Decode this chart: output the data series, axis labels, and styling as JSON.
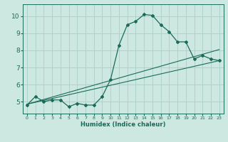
{
  "xlabel": "Humidex (Indice chaleur)",
  "ylabel": "",
  "bg_color": "#cce8e0",
  "grid_color": "#aacfc8",
  "line_color": "#1a6b5a",
  "xlim": [
    -0.5,
    23.5
  ],
  "ylim": [
    4.3,
    10.7
  ],
  "yticks": [
    5,
    6,
    7,
    8,
    9,
    10
  ],
  "xticks": [
    0,
    1,
    2,
    3,
    4,
    5,
    6,
    7,
    8,
    9,
    10,
    11,
    12,
    13,
    14,
    15,
    16,
    17,
    18,
    19,
    20,
    21,
    22,
    23
  ],
  "main_x": [
    0,
    1,
    2,
    3,
    4,
    5,
    6,
    7,
    8,
    9,
    10,
    11,
    12,
    13,
    14,
    15,
    16,
    17,
    18,
    19,
    20,
    21,
    22,
    23
  ],
  "main_y": [
    4.8,
    5.3,
    5.0,
    5.1,
    5.1,
    4.7,
    4.9,
    4.8,
    4.8,
    5.3,
    6.3,
    8.3,
    9.5,
    9.7,
    10.1,
    10.05,
    9.5,
    9.1,
    8.5,
    8.5,
    7.5,
    7.7,
    7.5,
    7.4
  ],
  "line1_x": [
    0,
    23
  ],
  "line1_y": [
    4.85,
    7.4
  ],
  "line2_x": [
    0,
    23
  ],
  "line2_y": [
    4.85,
    8.05
  ]
}
